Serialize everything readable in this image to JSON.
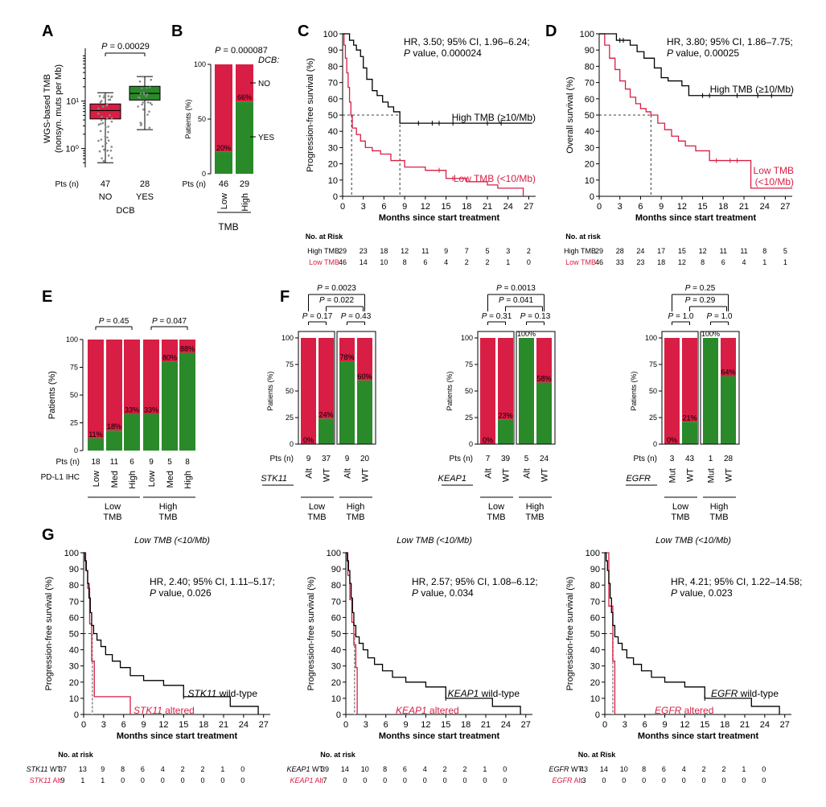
{
  "colors": {
    "red": "#d81e44",
    "green": "#2a8a2a",
    "black": "#000000",
    "darkred": "#c0392b",
    "grey": "#888888"
  },
  "chart_data": [
    {
      "panel": "A",
      "type": "box",
      "ylabel1": "WGS-based TMB",
      "ylabel2": "(nonsyn. muts per Mb)",
      "y_scale": "log",
      "ylim": [
        0.4,
        130
      ],
      "y_ticks": [
        {
          "label": "10⁰",
          "v": 1
        },
        {
          "label": "10¹",
          "v": 10
        }
      ],
      "pvalue": "P = 0.00029",
      "pts_label": "Pts (n)",
      "xlabel": "DCB",
      "groups": [
        {
          "name": "NO",
          "n": "47",
          "color_key": "red",
          "whisker_low": 0.5,
          "q1": 4.2,
          "median": 6.3,
          "q3": 8.7,
          "whisker_high": 15
        },
        {
          "name": "YES",
          "n": "28",
          "color_key": "green",
          "whisker_low": 2.5,
          "q1": 10.5,
          "median": 14.5,
          "q3": 20.5,
          "whisker_high": 33
        }
      ]
    },
    {
      "panel": "B",
      "type": "stacked_bar",
      "ylabel": "Patients (%)",
      "pvalue": "P = 0.000087",
      "legend_title": "DCB:",
      "legend": [
        "NO",
        "YES"
      ],
      "xlabel": "TMB",
      "pts_label": "Pts (n)",
      "y_ticks": [
        "0",
        "50",
        "100"
      ],
      "bars": [
        {
          "label": "Low",
          "n": "46",
          "yes_pct": 20,
          "pct_label": "20%"
        },
        {
          "label": "High",
          "n": "29",
          "yes_pct": 66,
          "pct_label": "66%"
        }
      ]
    },
    {
      "panel": "C",
      "type": "km",
      "ylabel": "Progression-free survival (%)",
      "xlabel": "Months since start treatment",
      "xlim": [
        0,
        28
      ],
      "ylim": [
        0,
        100
      ],
      "x_ticks": [
        "0",
        "3",
        "6",
        "9",
        "12",
        "15",
        "18",
        "21",
        "24",
        "27"
      ],
      "y_ticks": [
        "0",
        "10",
        "20",
        "30",
        "40",
        "50",
        "60",
        "70",
        "80",
        "90",
        "100"
      ],
      "stats": [
        "HR, 3.50; 95% CI, 1.96–6.24;",
        "P value, 0.000024"
      ],
      "risk_title": "No. at Risk",
      "series": [
        {
          "name": "High TMB (≥10/Mb)",
          "color_key": "black",
          "median": 8.3,
          "x": [
            0,
            1,
            1.6,
            2,
            2.6,
            3,
            3.5,
            4.3,
            5,
            5.8,
            6.6,
            7.4,
            8.3,
            27.5
          ],
          "y": [
            100,
            96,
            93,
            90,
            86,
            79,
            72,
            65,
            62,
            58,
            55,
            52,
            45,
            45
          ],
          "censor": [
            11,
            13,
            14,
            16,
            21,
            23
          ],
          "risk": [
            "29",
            "23",
            "18",
            "12",
            "11",
            "9",
            "7",
            "5",
            "3",
            "2"
          ]
        },
        {
          "name": "Low TMB (<10/Mb)",
          "color_key": "red",
          "median": 1.3,
          "x": [
            0,
            0.2,
            0.4,
            0.6,
            0.8,
            1,
            1.2,
            1.4,
            2,
            2.6,
            3.3,
            4.3,
            5.5,
            7,
            9,
            12,
            15,
            18,
            21,
            22.5,
            26,
            26.2
          ],
          "y": [
            100,
            93,
            85,
            76,
            67,
            58,
            50,
            42,
            38,
            34,
            30,
            28,
            26,
            22,
            18,
            16,
            11,
            9,
            7,
            5,
            5,
            0
          ],
          "censor": [
            14,
            16
          ],
          "risk": [
            "46",
            "14",
            "10",
            "8",
            "6",
            "4",
            "2",
            "2",
            "1",
            "0"
          ]
        }
      ]
    },
    {
      "panel": "D",
      "type": "km",
      "ylabel": "Overall survival (%)",
      "xlabel": "Months since start treatment",
      "xlim": [
        0,
        28
      ],
      "ylim": [
        0,
        100
      ],
      "x_ticks": [
        "0",
        "3",
        "6",
        "9",
        "12",
        "15",
        "18",
        "21",
        "24",
        "27"
      ],
      "y_ticks": [
        "0",
        "10",
        "20",
        "30",
        "40",
        "50",
        "60",
        "70",
        "80",
        "90",
        "100"
      ],
      "stats": [
        "HR, 3.80; 95% CI, 1.86–7.75;",
        "P value, 0.00025"
      ],
      "risk_title": "No. at risk",
      "series": [
        {
          "name": "High TMB (≥10/Mb)",
          "color_key": "black",
          "median": null,
          "x": [
            0,
            2.5,
            4.5,
            5.5,
            6.5,
            8,
            9,
            10,
            12,
            13,
            28
          ],
          "y": [
            100,
            96,
            93,
            89,
            85,
            79,
            73,
            71,
            68,
            62,
            62
          ],
          "censor": [
            3,
            3.5,
            15,
            16,
            20,
            23,
            25
          ],
          "risk": [
            "29",
            "28",
            "24",
            "17",
            "15",
            "12",
            "11",
            "11",
            "8",
            "5"
          ]
        },
        {
          "name": "Low TMB",
          "name2": "(<10/Mb)",
          "color_key": "red",
          "median": 7.5,
          "x": [
            0,
            0.8,
            1.5,
            2.3,
            3,
            3.8,
            4.5,
            5.3,
            6,
            6.8,
            7.5,
            8.5,
            9.5,
            10.5,
            11.5,
            12.5,
            14,
            16,
            21.5,
            22,
            28
          ],
          "y": [
            100,
            93,
            85,
            78,
            71,
            66,
            61,
            57,
            54,
            52,
            50,
            45,
            41,
            37,
            34,
            31,
            28,
            22,
            22,
            5,
            5
          ],
          "censor": [
            17,
            19,
            20
          ],
          "risk": [
            "46",
            "33",
            "23",
            "18",
            "12",
            "8",
            "6",
            "4",
            "1",
            "1"
          ]
        }
      ]
    },
    {
      "panel": "E",
      "type": "stacked_bar",
      "ylabel": "Patients (%)",
      "pts_label": "Pts (n)",
      "row_label": "PD-L1 IHC",
      "y_ticks": [
        "0",
        "25",
        "50",
        "75",
        "100"
      ],
      "pvalues": [
        "P = 0.45",
        "P = 0.047"
      ],
      "group_labels": [
        "Low\nTMB",
        "High\nTMB"
      ],
      "bars": [
        {
          "label": "Low",
          "n": "18",
          "yes_pct": 11,
          "pct_label": "11%"
        },
        {
          "label": "Med",
          "n": "11",
          "yes_pct": 18,
          "pct_label": "18%"
        },
        {
          "label": "High",
          "n": "6",
          "yes_pct": 33,
          "pct_label": "33%"
        },
        {
          "label": "Low",
          "n": "9",
          "yes_pct": 33,
          "pct_label": "33%"
        },
        {
          "label": "Med",
          "n": "5",
          "yes_pct": 80,
          "pct_label": "80%"
        },
        {
          "label": "High",
          "n": "8",
          "yes_pct": 88,
          "pct_label": "88%"
        }
      ]
    },
    {
      "panel": "F",
      "type": "stacked_bar_set",
      "ylabel": "Patients (%)",
      "pts_label": "Pts (n)",
      "y_ticks": [
        "0",
        "25",
        "50",
        "75",
        "100"
      ],
      "group_labels": [
        "Low\nTMB",
        "High\nTMB"
      ],
      "subplots": [
        {
          "gene": "STK11",
          "top_p": [
            "P = 0.0023",
            "P = 0.022"
          ],
          "pair_p": [
            "P = 0.17",
            "P = 0.43"
          ],
          "bars": [
            {
              "label": "Alt",
              "n": "9",
              "yes_pct": 0,
              "pct_label": "0%"
            },
            {
              "label": "WT",
              "n": "37",
              "yes_pct": 24,
              "pct_label": "24%"
            },
            {
              "label": "Alt",
              "n": "9",
              "yes_pct": 78,
              "pct_label": "78%"
            },
            {
              "label": "WT",
              "n": "20",
              "yes_pct": 60,
              "pct_label": "60%"
            }
          ]
        },
        {
          "gene": "KEAP1",
          "top_p": [
            "P = 0.0013",
            "P = 0.041"
          ],
          "pair_p": [
            "P = 0.31",
            "P = 0.13"
          ],
          "bars": [
            {
              "label": "Alt",
              "n": "7",
              "yes_pct": 0,
              "pct_label": "0%"
            },
            {
              "label": "WT",
              "n": "39",
              "yes_pct": 23,
              "pct_label": "23%"
            },
            {
              "label": "Alt",
              "n": "5",
              "yes_pct": 100,
              "pct_label": "100%"
            },
            {
              "label": "WT",
              "n": "24",
              "yes_pct": 58,
              "pct_label": "58%"
            }
          ]
        },
        {
          "gene": "EGFR",
          "top_p": [
            "P = 0.25",
            "P = 0.29"
          ],
          "pair_p": [
            "P = 1.0",
            "P = 1.0"
          ],
          "bars": [
            {
              "label": "Mut",
              "n": "3",
              "yes_pct": 0,
              "pct_label": "0%"
            },
            {
              "label": "WT",
              "n": "43",
              "yes_pct": 21,
              "pct_label": "21%"
            },
            {
              "label": "Mut",
              "n": "1",
              "yes_pct": 100,
              "pct_label": "100%"
            },
            {
              "label": "WT",
              "n": "28",
              "yes_pct": 64,
              "pct_label": "64%"
            }
          ]
        }
      ]
    },
    {
      "panel": "G",
      "type": "km_set",
      "ylabel": "Progression-free survival (%)",
      "xlabel": "Months since start treatment",
      "subtitle": "Low TMB (<10/Mb)",
      "xlim": [
        0,
        28
      ],
      "ylim": [
        0,
        100
      ],
      "x_ticks": [
        "0",
        "3",
        "6",
        "9",
        "12",
        "15",
        "18",
        "21",
        "24",
        "27"
      ],
      "y_ticks": [
        "0",
        "10",
        "20",
        "30",
        "40",
        "50",
        "60",
        "70",
        "80",
        "90",
        "100"
      ],
      "subplots": [
        {
          "gene": "STK11",
          "stats": [
            "HR, 2.40; 95% CI, 1.11–5.17;",
            "P value, 0.026"
          ],
          "risk_title": "No. at risk",
          "wt_label": " wild-type",
          "alt_label": " altered",
          "wt_row": " WT",
          "alt_row": " Alt",
          "wt": {
            "x": [
              0,
              0.2,
              0.4,
              0.6,
              0.8,
              1,
              1.2,
              1.5,
              2,
              2.6,
              3.3,
              4.3,
              5.5,
              7,
              9,
              12,
              15,
              18,
              22,
              26,
              26.2
            ],
            "y": [
              100,
              95,
              89,
              81,
              72,
              63,
              55,
              50,
              46,
              42,
              37,
              33,
              29,
              24,
              21,
              18,
              11,
              11,
              5,
              5,
              0
            ],
            "censor": [
              15
            ],
            "median": 1.5
          },
          "alt": {
            "x": [
              0,
              0.3,
              0.6,
              0.9,
              1.2,
              1.6,
              6.8,
              7
            ],
            "y": [
              100,
              89,
              78,
              56,
              33,
              11,
              11,
              0
            ],
            "censor": [],
            "median": 1.3
          },
          "risk_wt": [
            "37",
            "13",
            "9",
            "8",
            "6",
            "4",
            "2",
            "2",
            "1",
            "0"
          ],
          "risk_alt": [
            "9",
            "1",
            "1",
            "0",
            "0",
            "0",
            "0",
            "0",
            "0",
            "0"
          ]
        },
        {
          "gene": "KEAP1",
          "stats": [
            "HR, 2.57; 95% CI, 1.08–6.12;",
            "P value, 0.034"
          ],
          "risk_title": "No. at risk",
          "wt_label": " wild-type",
          "alt_label": " altered",
          "wt_row": " WT",
          "alt_row": " Alt",
          "wt": {
            "x": [
              0,
              0.2,
              0.4,
              0.6,
              0.8,
              1,
              1.2,
              1.5,
              2,
              2.6,
              3.3,
              4.3,
              5.5,
              7,
              9,
              12,
              15,
              18,
              22,
              26,
              26.2
            ],
            "y": [
              100,
              95,
              89,
              81,
              72,
              63,
              55,
              48,
              44,
              40,
              35,
              31,
              27,
              23,
              20,
              17,
              10,
              10,
              5,
              5,
              0
            ],
            "censor": [
              15
            ],
            "median": 1.4
          },
          "alt": {
            "x": [
              0,
              0.3,
              0.6,
              0.9,
              1.2,
              1.5,
              1.7
            ],
            "y": [
              100,
              86,
              71,
              57,
              43,
              29,
              0
            ],
            "censor": [],
            "median": 1.3
          },
          "risk_wt": [
            "39",
            "14",
            "10",
            "8",
            "6",
            "4",
            "2",
            "2",
            "1",
            "0"
          ],
          "risk_alt": [
            "7",
            "0",
            "0",
            "0",
            "0",
            "0",
            "0",
            "0",
            "0",
            "0"
          ]
        },
        {
          "gene": "EGFR",
          "stats": [
            "HR, 4.21; 95% CI, 1.22–14.58;",
            "P value, 0.023"
          ],
          "risk_title": "No. at Risk",
          "wt_label": " wild-type",
          "alt_label": " altered",
          "wt_row": " WT",
          "alt_row": " Alt",
          "wt": {
            "x": [
              0,
              0.2,
              0.4,
              0.6,
              0.8,
              1,
              1.2,
              1.5,
              2,
              2.6,
              3.3,
              4.3,
              5.5,
              7,
              9,
              12,
              15,
              18,
              22,
              26,
              26.2
            ],
            "y": [
              100,
              95,
              89,
              81,
              72,
              63,
              55,
              48,
              44,
              40,
              35,
              31,
              27,
              23,
              20,
              17,
              10,
              10,
              5,
              5,
              0
            ],
            "censor": [
              15
            ],
            "median": 1.4
          },
          "alt": {
            "x": [
              0,
              0.6,
              1.2,
              1.5
            ],
            "y": [
              100,
              67,
              33,
              0
            ],
            "censor": [],
            "median": 1.2
          },
          "risk_wt": [
            "43",
            "14",
            "10",
            "8",
            "6",
            "4",
            "2",
            "2",
            "1",
            "0"
          ],
          "risk_alt": [
            "3",
            "0",
            "0",
            "0",
            "0",
            "0",
            "0",
            "0",
            "0",
            "0"
          ]
        }
      ]
    }
  ]
}
